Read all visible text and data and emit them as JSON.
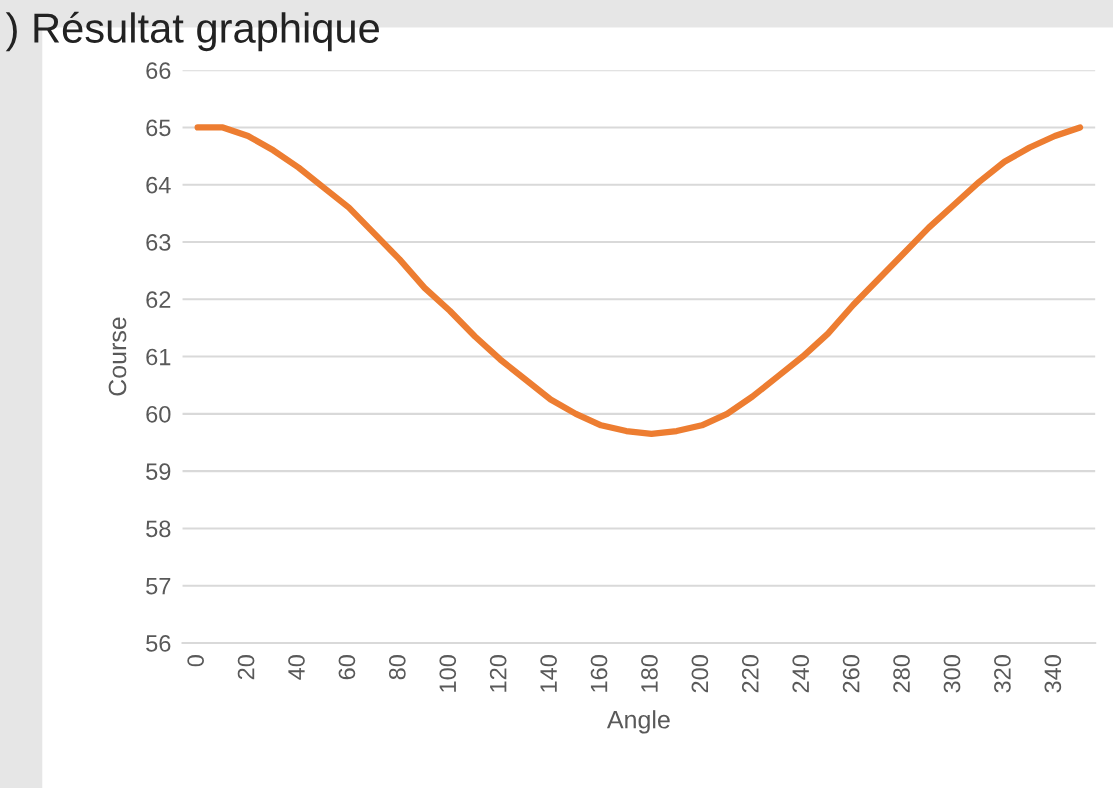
{
  "chart_data": {
    "type": "line",
    "title": ") Résultat graphique",
    "xlabel": "Angle",
    "ylabel": "Course",
    "categories": [
      "0",
      null,
      "20",
      null,
      "40",
      null,
      "60",
      null,
      "80",
      null,
      "100",
      null,
      "120",
      null,
      "140",
      null,
      "160",
      null,
      "180",
      null,
      "200",
      null,
      "220",
      null,
      "240",
      null,
      "260",
      null,
      "280",
      null,
      "300",
      null,
      "320",
      null,
      "340",
      null
    ],
    "series": [
      {
        "color": "#ed7d31",
        "values": [
          65.0,
          65.0,
          64.85,
          64.6,
          64.3,
          63.95,
          63.6,
          63.15,
          62.7,
          62.2,
          61.8,
          61.35,
          60.95,
          60.6,
          60.25,
          60.0,
          59.8,
          59.7,
          59.65,
          59.7,
          59.8,
          60.0,
          60.3,
          60.65,
          61.0,
          61.4,
          61.9,
          62.35,
          62.8,
          63.25,
          63.65,
          64.05,
          64.4,
          64.65,
          64.85,
          65.0
        ]
      }
    ],
    "ylim": [
      56,
      66
    ],
    "yticks": [
      56,
      57,
      58,
      59,
      60,
      61,
      62,
      63,
      64,
      65,
      66
    ],
    "grid": "y",
    "marker": "none",
    "line_style": "solid"
  }
}
